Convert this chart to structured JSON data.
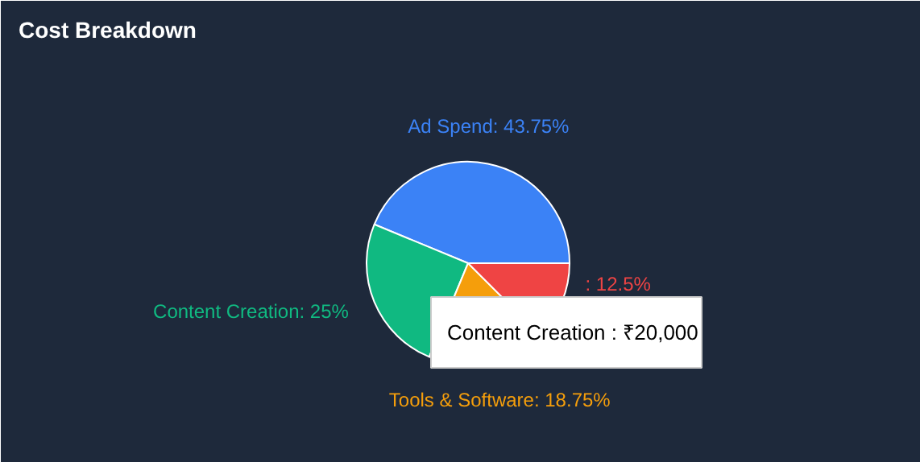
{
  "chart_data": {
    "type": "pie",
    "title": "Cost Breakdown",
    "categories": [
      "Ad Spend",
      "Content Creation",
      "Tools & Software",
      null
    ],
    "values": [
      43.75,
      25,
      18.75,
      12.5
    ],
    "colors": [
      "#3b82f6",
      "#10b981",
      "#f59e0b",
      "#ef4444"
    ],
    "value_labels": [
      ": 43.75%",
      ": 25%",
      ": 18.75%",
      ": 12.5%"
    ],
    "annotations": [
      "Content Creation : ₹20,000"
    ]
  }
}
